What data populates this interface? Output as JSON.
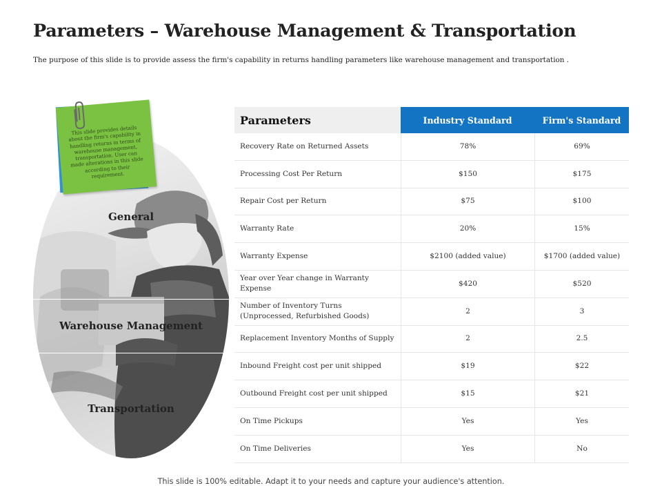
{
  "title": "Parameters – Warehouse Management & Transportation",
  "subtitle": "The purpose of this slide is to provide assess the firm's capability in returns handling parameters like warehouse management and transportation  .",
  "note": {
    "text": "This slide provides details about the firm's capability in handling returns in terms of warehouse management, transportation. User can made alterations in this slide according to their requirement."
  },
  "sections": [
    "General",
    "Warehouse Management",
    "Transportation"
  ],
  "table": {
    "headers": [
      "Parameters",
      "Industry Standard",
      "Firm's Standard"
    ],
    "rows": [
      [
        "Recovery Rate on Returned  Assets",
        "78%",
        "69%"
      ],
      [
        "Processing Cost Per Return",
        "$150",
        "$175"
      ],
      [
        "Repair Cost per Return",
        "$75",
        "$100"
      ],
      [
        "Warranty  Rate",
        "20%",
        "15%"
      ],
      [
        "Warranty  Expense",
        "$2100 (added value)",
        "$1700 (added value)"
      ],
      [
        "Year over Year change in Warranty Expense",
        "$420",
        "$520"
      ],
      [
        "Number of Inventory Turns (Unprocessed, Refurbished Goods)",
        "2",
        "3"
      ],
      [
        "Replacement  Inventory Months of Supply",
        "2",
        "2.5"
      ],
      [
        "Inbound Freight cost per unit shipped",
        "$19",
        "$22"
      ],
      [
        "Outbound Freight cost per unit shipped",
        "$15",
        "$21"
      ],
      [
        "On Time Pickups",
        "Yes",
        "Yes"
      ],
      [
        "On Time Deliveries",
        "Yes",
        "No"
      ]
    ]
  },
  "footer": "This slide is 100% editable. Adapt it to your needs and capture your audience's attention.",
  "colors": {
    "header_blue": "#1474c4",
    "note_green": "#7cc242",
    "note_blue": "#2f95de"
  },
  "icons": [
    "paperclip-icon"
  ]
}
